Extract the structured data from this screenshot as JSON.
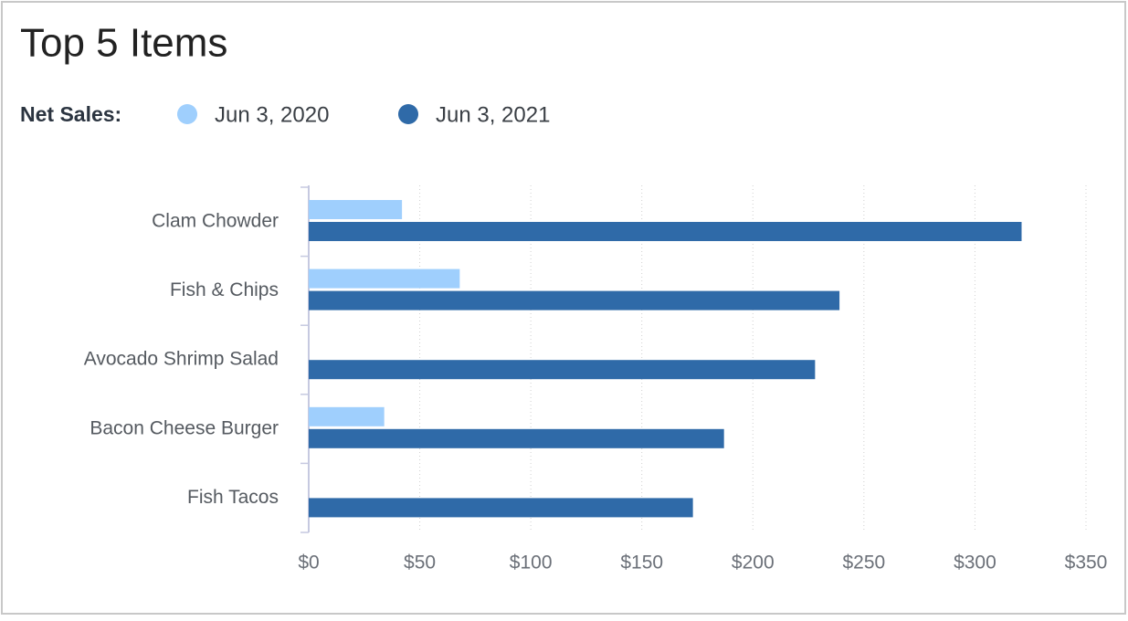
{
  "chart_data": {
    "type": "bar",
    "orientation": "horizontal",
    "title": "Top 5 Items",
    "legend_title": "Net Sales:",
    "categories": [
      "Clam Chowder",
      "Fish & Chips",
      "Avocado Shrimp Salad",
      "Bacon Cheese Burger",
      "Fish Tacos"
    ],
    "series": [
      {
        "name": "Jun 3, 2020",
        "color": "#9fcffd",
        "values": [
          42,
          68,
          null,
          34,
          null
        ]
      },
      {
        "name": "Jun 3, 2021",
        "color": "#2f6aa8",
        "values": [
          321,
          239,
          228,
          187,
          173
        ]
      }
    ],
    "xlim": [
      0,
      350
    ],
    "xticks": [
      {
        "value": 0,
        "label": "$0"
      },
      {
        "value": 50,
        "label": "$50"
      },
      {
        "value": 100,
        "label": "$100"
      },
      {
        "value": 150,
        "label": "$150"
      },
      {
        "value": 200,
        "label": "$200"
      },
      {
        "value": 250,
        "label": "$250"
      },
      {
        "value": 300,
        "label": "$300"
      },
      {
        "value": 350,
        "label": "$350"
      }
    ],
    "grid": true
  }
}
